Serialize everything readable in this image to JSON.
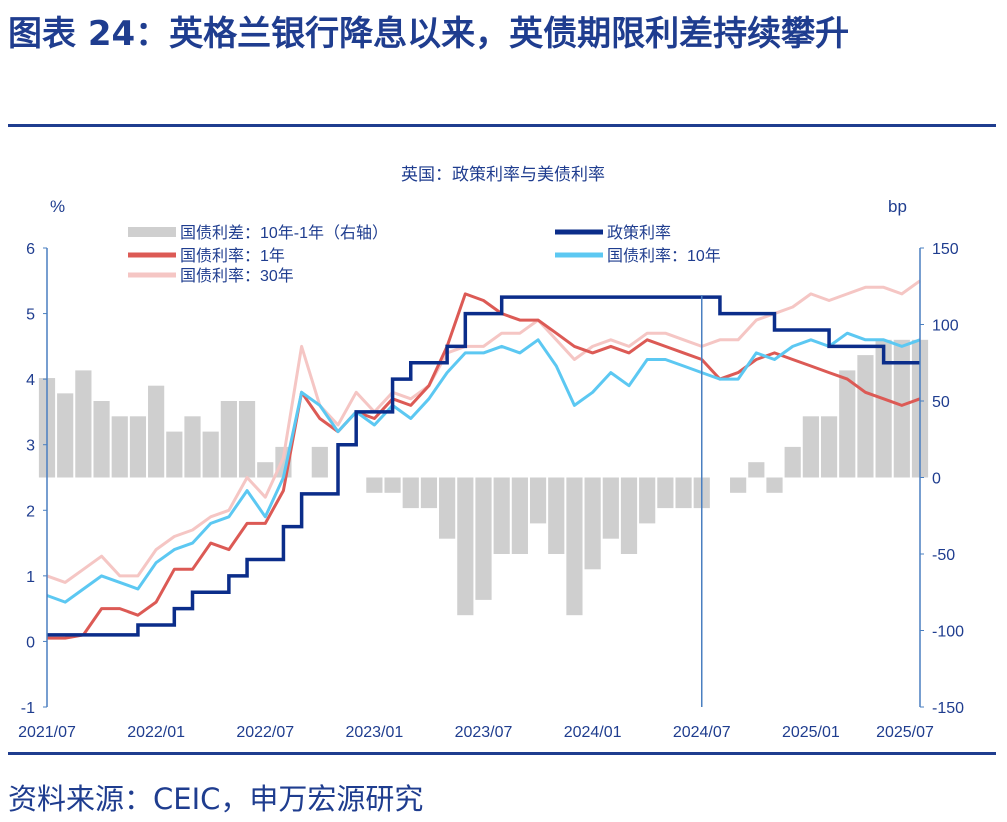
{
  "header": {
    "title": "图表 24：英格兰银行降息以来，英债期限利差持续攀升"
  },
  "footer": {
    "source": "资料来源：CEIC，申万宏源研究"
  },
  "colors": {
    "policy": "#0b2d8a",
    "y1": "#dc5a55",
    "y10": "#5cc8f2",
    "y30": "#f5c6c4",
    "spread": "#cfcfcf",
    "axis": "#4a7fc0",
    "text": "#1f3d8f"
  },
  "chart_data": {
    "type": "line",
    "title": "英国：政策利率与美债利率",
    "ylabel": "%",
    "y2label": "bp",
    "ylim": [
      -1,
      6
    ],
    "y2lim": [
      -150,
      150
    ],
    "yticks": [
      "6",
      "5",
      "4",
      "3",
      "2",
      "1",
      "0",
      "-1"
    ],
    "y2ticks": [
      "150",
      "100",
      "50",
      "0",
      "-50",
      "-100",
      "-150"
    ],
    "xticks": [
      "2021/07",
      "2022/01",
      "2022/07",
      "2023/01",
      "2023/07",
      "2024/01",
      "2024/07",
      "2025/01",
      "2025/07"
    ],
    "x_start": "2021/07",
    "months": 49,
    "vline": "2024/07",
    "legend": [
      "国债利差：10年-1年（右轴）",
      "国债利率：1年",
      "国债利率：30年",
      "政策利率",
      "国债利率：10年"
    ],
    "series": [
      {
        "name": "政策利率",
        "type": "step",
        "steps": [
          [
            0,
            0.1
          ],
          [
            5,
            0.25
          ],
          [
            7,
            0.5
          ],
          [
            8,
            0.75
          ],
          [
            10,
            1.0
          ],
          [
            11,
            1.25
          ],
          [
            13,
            1.75
          ],
          [
            14,
            2.25
          ],
          [
            16,
            3.0
          ],
          [
            17,
            3.5
          ],
          [
            19,
            4.0
          ],
          [
            20,
            4.25
          ],
          [
            22,
            4.5
          ],
          [
            23,
            5.0
          ],
          [
            25,
            5.25
          ],
          [
            37,
            5.0
          ],
          [
            40,
            4.75
          ],
          [
            43,
            4.5
          ],
          [
            46,
            4.25
          ],
          [
            48,
            4.25
          ]
        ]
      },
      {
        "name": "国债利率：30年",
        "values": [
          1.0,
          0.9,
          1.1,
          1.3,
          1.0,
          1.0,
          1.4,
          1.6,
          1.7,
          1.9,
          2.0,
          2.5,
          2.2,
          2.8,
          4.5,
          3.6,
          3.3,
          3.8,
          3.5,
          3.8,
          3.7,
          3.9,
          4.4,
          4.5,
          4.5,
          4.7,
          4.7,
          4.9,
          4.6,
          4.3,
          4.5,
          4.6,
          4.5,
          4.7,
          4.7,
          4.6,
          4.5,
          4.6,
          4.6,
          4.9,
          5.0,
          5.1,
          5.3,
          5.2,
          5.3,
          5.4,
          5.4,
          5.3,
          5.5
        ]
      },
      {
        "name": "国债利率：1年",
        "values": [
          0.05,
          0.05,
          0.1,
          0.5,
          0.5,
          0.4,
          0.6,
          1.1,
          1.1,
          1.5,
          1.4,
          1.8,
          1.8,
          2.3,
          3.8,
          3.4,
          3.2,
          3.5,
          3.4,
          3.7,
          3.6,
          3.9,
          4.5,
          5.3,
          5.2,
          5.0,
          4.9,
          4.9,
          4.7,
          4.5,
          4.4,
          4.5,
          4.4,
          4.6,
          4.5,
          4.4,
          4.3,
          4.0,
          4.1,
          4.3,
          4.4,
          4.3,
          4.2,
          4.1,
          4.0,
          3.8,
          3.7,
          3.6,
          3.7
        ]
      },
      {
        "name": "国债利率：10年",
        "values": [
          0.7,
          0.6,
          0.8,
          1.0,
          0.9,
          0.8,
          1.2,
          1.4,
          1.5,
          1.8,
          1.9,
          2.3,
          1.9,
          2.5,
          3.8,
          3.6,
          3.2,
          3.5,
          3.3,
          3.6,
          3.4,
          3.7,
          4.1,
          4.4,
          4.4,
          4.5,
          4.4,
          4.6,
          4.2,
          3.6,
          3.8,
          4.1,
          3.9,
          4.3,
          4.3,
          4.2,
          4.1,
          4.0,
          4.0,
          4.4,
          4.3,
          4.5,
          4.6,
          4.5,
          4.7,
          4.6,
          4.6,
          4.5,
          4.6
        ]
      },
      {
        "name": "国债利差：10年-1年（右轴）",
        "axis": "right",
        "type": "bar",
        "values": [
          65,
          55,
          70,
          50,
          40,
          40,
          60,
          30,
          40,
          30,
          50,
          50,
          10,
          20,
          0,
          20,
          0,
          0,
          -10,
          -10,
          -20,
          -20,
          -40,
          -90,
          -80,
          -50,
          -50,
          -30,
          -50,
          -90,
          -60,
          -40,
          -50,
          -30,
          -20,
          -20,
          -20,
          0,
          -10,
          10,
          -10,
          20,
          40,
          40,
          70,
          80,
          90,
          90,
          90
        ]
      }
    ]
  }
}
